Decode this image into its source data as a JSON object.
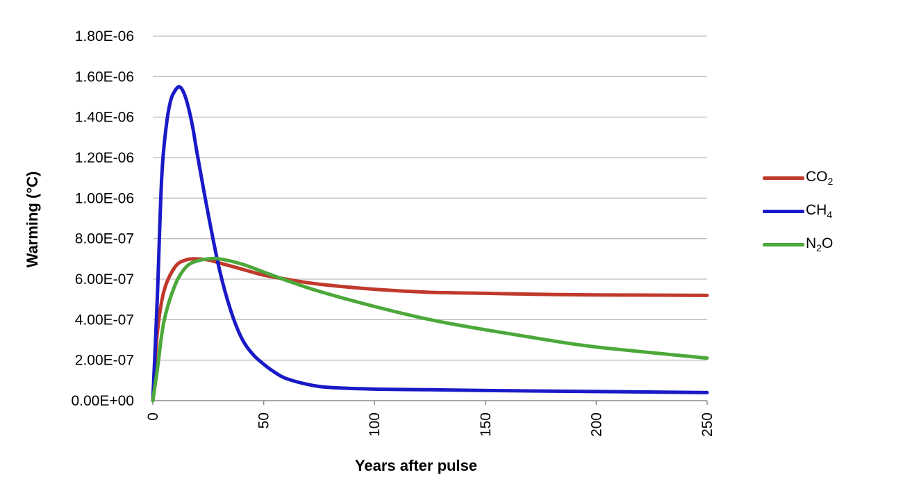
{
  "chart_data": {
    "type": "line",
    "xlabel": "Years after pulse",
    "ylabel": "Warming (°C)",
    "xlim": [
      0,
      250
    ],
    "ylim": [
      0,
      1.8e-06
    ],
    "x_ticks": [
      0,
      50,
      100,
      150,
      200,
      250
    ],
    "x_tick_labels": [
      "0",
      "50",
      "100",
      "150",
      "200",
      "250"
    ],
    "y_ticks": [
      0,
      2e-07,
      4e-07,
      6e-07,
      8e-07,
      1e-06,
      1.2e-06,
      1.4e-06,
      1.6e-06,
      1.8e-06
    ],
    "y_tick_labels": [
      "0.00E+00",
      "2.00E-07",
      "4.00E-07",
      "6.00E-07",
      "8.00E-07",
      "1.00E-06",
      "1.20E-06",
      "1.40E-06",
      "1.60E-06",
      "1.80E-06"
    ],
    "grid": "horizontal",
    "legend_position": "right",
    "series": [
      {
        "name": "CO2",
        "color": "#C0392B",
        "x": [
          0,
          2,
          5,
          10,
          15,
          20,
          25,
          30,
          40,
          50,
          60,
          75,
          100,
          125,
          150,
          175,
          200,
          250
        ],
        "y": [
          0,
          3.3e-07,
          5.4e-07,
          6.6e-07,
          6.95e-07,
          7e-07,
          6.95e-07,
          6.8e-07,
          6.5e-07,
          6.2e-07,
          6e-07,
          5.75e-07,
          5.5e-07,
          5.35e-07,
          5.3e-07,
          5.25e-07,
          5.22e-07,
          5.2e-07
        ]
      },
      {
        "name": "CH4",
        "color": "#1A1AC8",
        "x": [
          0,
          2,
          4,
          6,
          8,
          10,
          12,
          14,
          16,
          18,
          20,
          25,
          30,
          35,
          40,
          45,
          50,
          55,
          60,
          70,
          80,
          100,
          125,
          150,
          200,
          250
        ],
        "y": [
          0,
          5e-07,
          1.1e-06,
          1.35e-06,
          1.48e-06,
          1.53e-06,
          1.55e-06,
          1.52e-06,
          1.45e-06,
          1.35e-06,
          1.22e-06,
          9.2e-07,
          6.5e-07,
          4.5e-07,
          3.1e-07,
          2.3e-07,
          1.8e-07,
          1.4e-07,
          1.1e-07,
          8e-08,
          6.5e-08,
          5.7e-08,
          5.4e-08,
          5e-08,
          4.5e-08,
          4e-08
        ]
      },
      {
        "name": "N2O",
        "color": "#4CA83A",
        "x": [
          0,
          2,
          5,
          10,
          15,
          20,
          25,
          30,
          40,
          50,
          60,
          75,
          100,
          125,
          150,
          175,
          200,
          250
        ],
        "y": [
          0,
          1.5e-07,
          3.9e-07,
          5.7e-07,
          6.6e-07,
          6.9e-07,
          7e-07,
          7e-07,
          6.75e-07,
          6.35e-07,
          5.95e-07,
          5.4e-07,
          4.65e-07,
          4e-07,
          3.5e-07,
          3.05e-07,
          2.65e-07,
          2.1e-07
        ]
      }
    ]
  },
  "legend": {
    "items": [
      {
        "base": "CO",
        "sub": "2"
      },
      {
        "base": "CH",
        "sub": "4"
      },
      {
        "base": "N",
        "sub": "2",
        "tail": "O"
      }
    ]
  }
}
